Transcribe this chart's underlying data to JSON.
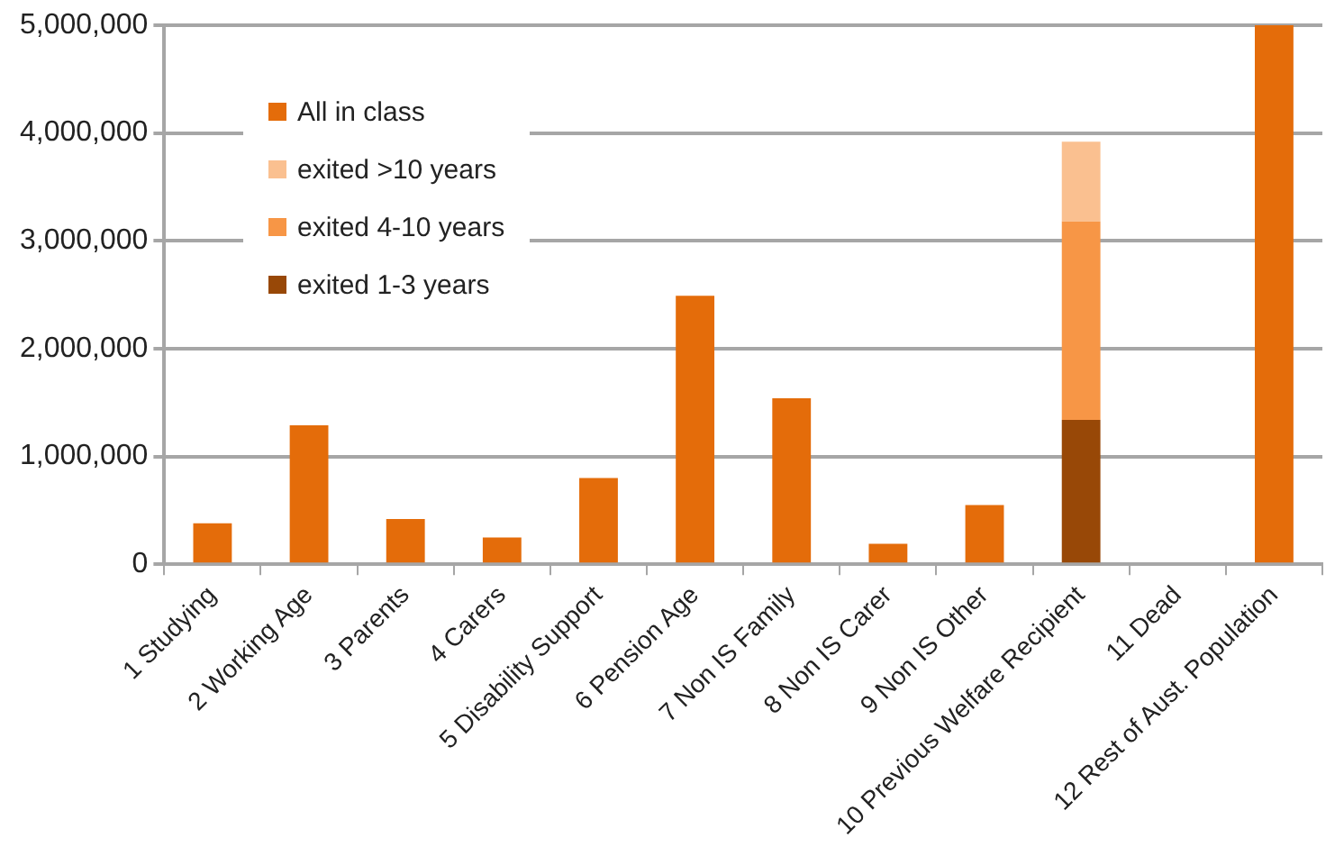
{
  "chart_data": {
    "type": "bar",
    "stacked": true,
    "categories": [
      "1 Studying",
      "2 Working Age",
      "3 Parents",
      "4 Carers",
      "5 Disability Support",
      "6 Pension Age",
      "7 Non IS Family",
      "8 Non IS Carer",
      "9 Non IS Other",
      "10 Previous Welfare Recipient",
      "11 Dead",
      "12 Rest of Aust. Population"
    ],
    "series": [
      {
        "name": "All in class",
        "color": "#e46c0a",
        "values": [
          380000,
          1290000,
          420000,
          250000,
          800000,
          2490000,
          1540000,
          190000,
          550000,
          null,
          0,
          5000000
        ]
      },
      {
        "name": "exited 1-3 years",
        "color": "#984807",
        "values": [
          null,
          null,
          null,
          null,
          null,
          null,
          null,
          null,
          null,
          1340000,
          null,
          null
        ]
      },
      {
        "name": "exited 4-10 years",
        "color": "#f79646",
        "values": [
          null,
          null,
          null,
          null,
          null,
          null,
          null,
          null,
          null,
          1840000,
          null,
          null
        ]
      },
      {
        "name": "exited >10 years",
        "color": "#fac090",
        "values": [
          null,
          null,
          null,
          null,
          null,
          null,
          null,
          null,
          null,
          740000,
          null,
          null
        ]
      }
    ],
    "ylim": [
      0,
      5000000
    ],
    "yticks": [
      0,
      {
        "value": 1000000,
        "label": "1,000,000"
      },
      {
        "value": 2000000,
        "label": "2,000,000"
      },
      {
        "value": 3000000,
        "label": "3,000,000"
      },
      {
        "value": 4000000,
        "label": "4,000,000"
      },
      {
        "value": 5000000,
        "label": "5,000,000"
      }
    ],
    "grid": "y",
    "legend": "top left"
  }
}
